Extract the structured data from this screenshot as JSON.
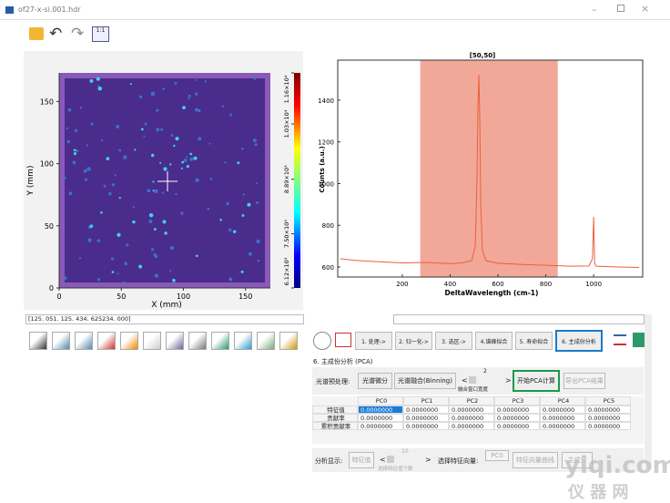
{
  "window": {
    "title": "of27-x-si.001.hdr"
  },
  "heatmap": {
    "xlabel": "X (mm)",
    "ylabel": "Y (mm)",
    "xlim": [
      0,
      170
    ],
    "ylim": [
      0,
      173
    ],
    "xticks": [
      0,
      50,
      100,
      150
    ],
    "yticks": [
      0,
      50,
      100,
      150
    ],
    "colorbar": {
      "lim": [
        6120,
        11600
      ],
      "ticks": [
        {
          "value": 6120,
          "label": "6.12×10³"
        },
        {
          "value": 7500,
          "label": "7.50×10³"
        },
        {
          "value": 8890,
          "label": "8.89×10³"
        },
        {
          "value": 10300,
          "label": "1.03×10⁴"
        },
        {
          "value": 11600,
          "label": "1.16×10⁴"
        }
      ]
    }
  },
  "spectrum": {
    "type": "line",
    "title": "[50,50]",
    "xlabel": "DeltaWavelength (cm-1)",
    "ylabel": "Counts (a.u.)",
    "xlim": [
      -70,
      1205
    ],
    "ylim": [
      552,
      1592
    ],
    "xticks": [
      200,
      400,
      600,
      800,
      1000
    ],
    "yticks": [
      600,
      800,
      1000,
      1200,
      1400
    ],
    "highlight": [
      275,
      850
    ],
    "color": "#e8603c",
    "x": [
      -60,
      0,
      100,
      200,
      300,
      400,
      450,
      490,
      505,
      512,
      516,
      520,
      524,
      528,
      535,
      550,
      600,
      700,
      800,
      900,
      980,
      995,
      1000,
      1004,
      1010,
      1100,
      1190
    ],
    "values": [
      640,
      632,
      625,
      620,
      622,
      616,
      620,
      630,
      700,
      1000,
      1350,
      1522,
      1300,
      900,
      680,
      630,
      618,
      612,
      608,
      604,
      605,
      640,
      840,
      620,
      604,
      600,
      598
    ]
  },
  "coords": "[125. 051. 125. 434. 625234. 000]",
  "tabs": [
    "1. 处理->",
    "2. 归一化->",
    "3. 选区->",
    "4.谱峰拟合",
    "5. 寿命拟合",
    "6. 主成份分析"
  ],
  "section": "6. 主成份分析 (PCA)",
  "controls": {
    "preprocess": "光谱预处理:",
    "derivative": "光谱微分",
    "binning": "光谱融合(Binning)",
    "prev": "<",
    "window": "2",
    "window_label": "融合窗口宽度",
    "next": ">",
    "start": "开始PCA计算",
    "export": "导出PCA结果"
  },
  "table": {
    "columns": [
      "PC0",
      "PC1",
      "PC2",
      "PC3",
      "PC4",
      "PC5"
    ],
    "rows": [
      {
        "name": "特征值",
        "values": [
          "0.0000000",
          "0.0000000",
          "0.0000000",
          "0.0000000",
          "0.0000000",
          "0.0000000"
        ]
      },
      {
        "name": "贡献率",
        "values": [
          "0.0000000",
          "0.0000000",
          "0.0000000",
          "0.0000000",
          "0.0000000",
          "0.0000000"
        ]
      },
      {
        "name": "累积贡献率",
        "values": [
          "0.0000000",
          "0.0000000",
          "0.0000000",
          "0.0000000",
          "0.0000000",
          "0.0000000"
        ]
      }
    ]
  },
  "display": {
    "label": "分析显示:",
    "eigen": "特征值",
    "prev": "<",
    "count": "10",
    "count_label": "选择特征值个数",
    "next": ">",
    "vector_label": "选择特征向量:",
    "vector": "PC0",
    "curve": "特征向量曲线",
    "component": "主成分"
  },
  "watermark": {
    "site": "yiqi.com",
    "name": "仪 器 网"
  }
}
